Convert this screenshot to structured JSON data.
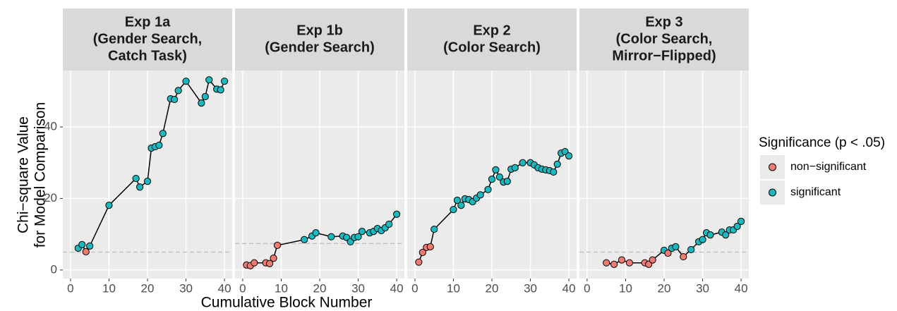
{
  "ylabel": [
    "Chi−square Value",
    "for Model Comparison"
  ],
  "xlabel": "Cumulative Block Number",
  "legend": {
    "title": "Significance (p < .05)",
    "items": [
      {
        "name": "non−significant",
        "color": "#f07b72"
      },
      {
        "name": "significant",
        "color": "#1ab9bf"
      }
    ]
  },
  "chart_data": [
    {
      "type": "line",
      "title": [
        "Exp 1a",
        "(Gender Search,",
        "Catch Task)"
      ],
      "x": [
        2,
        3,
        4,
        5,
        10,
        17,
        18,
        20,
        21,
        22,
        23,
        24,
        26,
        27,
        28,
        30,
        34,
        35,
        36,
        38,
        39,
        40
      ],
      "values": [
        6.1,
        7.1,
        5.1,
        6.7,
        18.1,
        25.6,
        23.2,
        24.8,
        34.1,
        34.5,
        34.9,
        38.2,
        47.9,
        47.7,
        50.2,
        52.8,
        46.7,
        48.5,
        53.2,
        50.6,
        50.4,
        52.8
      ],
      "significant": [
        true,
        true,
        false,
        true,
        true,
        true,
        true,
        true,
        true,
        true,
        true,
        true,
        true,
        true,
        true,
        true,
        true,
        true,
        true,
        true,
        true,
        true
      ],
      "threshold": 5,
      "xlim": [
        -2,
        42
      ],
      "ylim": [
        -2.4,
        55.8
      ],
      "xticks": [
        0,
        10,
        20,
        30,
        40
      ],
      "yticks": [
        0,
        20,
        40
      ]
    },
    {
      "type": "line",
      "title": [
        "Exp 1b",
        "(Gender Search)"
      ],
      "x": [
        1,
        2,
        3,
        6,
        7,
        8,
        9,
        16,
        18,
        19,
        23,
        26,
        27,
        28,
        29,
        30,
        31,
        33,
        34,
        35,
        36,
        37,
        38,
        40
      ],
      "values": [
        1.4,
        1.2,
        2,
        2,
        1.8,
        3.3,
        6.9,
        8.5,
        9.5,
        10.4,
        9.3,
        9.5,
        9.1,
        7.9,
        9.1,
        9.3,
        10.8,
        10.4,
        10.8,
        11.6,
        11,
        11.8,
        12.8,
        15.6
      ],
      "significant": [
        false,
        false,
        false,
        false,
        false,
        false,
        false,
        true,
        true,
        true,
        true,
        true,
        true,
        true,
        true,
        true,
        true,
        true,
        true,
        true,
        true,
        true,
        true,
        true
      ],
      "threshold": 7.4,
      "xlim": [
        -2,
        42
      ],
      "ylim": [
        -2.4,
        55.8
      ],
      "xticks": [
        0,
        10,
        20,
        30,
        40
      ],
      "yticks": [
        0,
        20,
        40
      ]
    },
    {
      "type": "line",
      "title": [
        "Exp 2",
        "(Color Search)"
      ],
      "x": [
        1,
        2,
        3,
        4,
        5,
        10,
        11,
        12,
        13,
        14,
        15,
        16,
        17,
        19,
        20,
        21,
        22,
        23,
        24,
        25,
        26,
        28,
        30,
        31,
        32,
        33,
        34,
        35,
        36,
        37,
        38,
        39,
        40
      ],
      "values": [
        2.2,
        4.9,
        6.3,
        6.5,
        11.4,
        16.9,
        19.5,
        18.1,
        19.9,
        19.7,
        19.1,
        20.1,
        21,
        22.5,
        25.4,
        28,
        26,
        24.6,
        24.8,
        28.2,
        28.6,
        30,
        30,
        29.4,
        28.6,
        28.2,
        28,
        27.8,
        27.4,
        29.6,
        32.7,
        33.1,
        31.9
      ],
      "significant": [
        false,
        false,
        false,
        false,
        true,
        true,
        true,
        true,
        true,
        true,
        true,
        true,
        true,
        true,
        true,
        true,
        true,
        true,
        true,
        true,
        true,
        true,
        true,
        true,
        true,
        true,
        true,
        true,
        true,
        true,
        true,
        true,
        true
      ],
      "xlim": [
        -2,
        42
      ],
      "ylim": [
        -2.4,
        55.8
      ],
      "xticks": [
        0,
        10,
        20,
        30,
        40
      ],
      "yticks": [
        0,
        20,
        40
      ]
    },
    {
      "type": "line",
      "title": [
        "Exp 3",
        "(Color Search,",
        "Mirror−Flipped)"
      ],
      "x": [
        5,
        7,
        9,
        11,
        15,
        16,
        17,
        20,
        21,
        22,
        23,
        25,
        27,
        29,
        30,
        31,
        32,
        35,
        36,
        37,
        38,
        39,
        40
      ],
      "values": [
        2,
        1.6,
        2.8,
        2,
        2,
        1.6,
        2.8,
        5.5,
        4.7,
        6.1,
        6.5,
        3.7,
        5.7,
        7.9,
        8.5,
        10.4,
        9.8,
        10.6,
        9.8,
        11.2,
        11.2,
        12.2,
        13.6
      ],
      "significant": [
        false,
        false,
        false,
        false,
        false,
        false,
        false,
        true,
        false,
        true,
        true,
        false,
        true,
        true,
        true,
        true,
        true,
        true,
        true,
        true,
        true,
        true,
        true
      ],
      "threshold": 5,
      "xlim": [
        -2,
        42
      ],
      "ylim": [
        -2.4,
        55.8
      ],
      "xticks": [
        0,
        10,
        20,
        30,
        40
      ],
      "yticks": [
        0,
        20,
        40
      ]
    }
  ]
}
